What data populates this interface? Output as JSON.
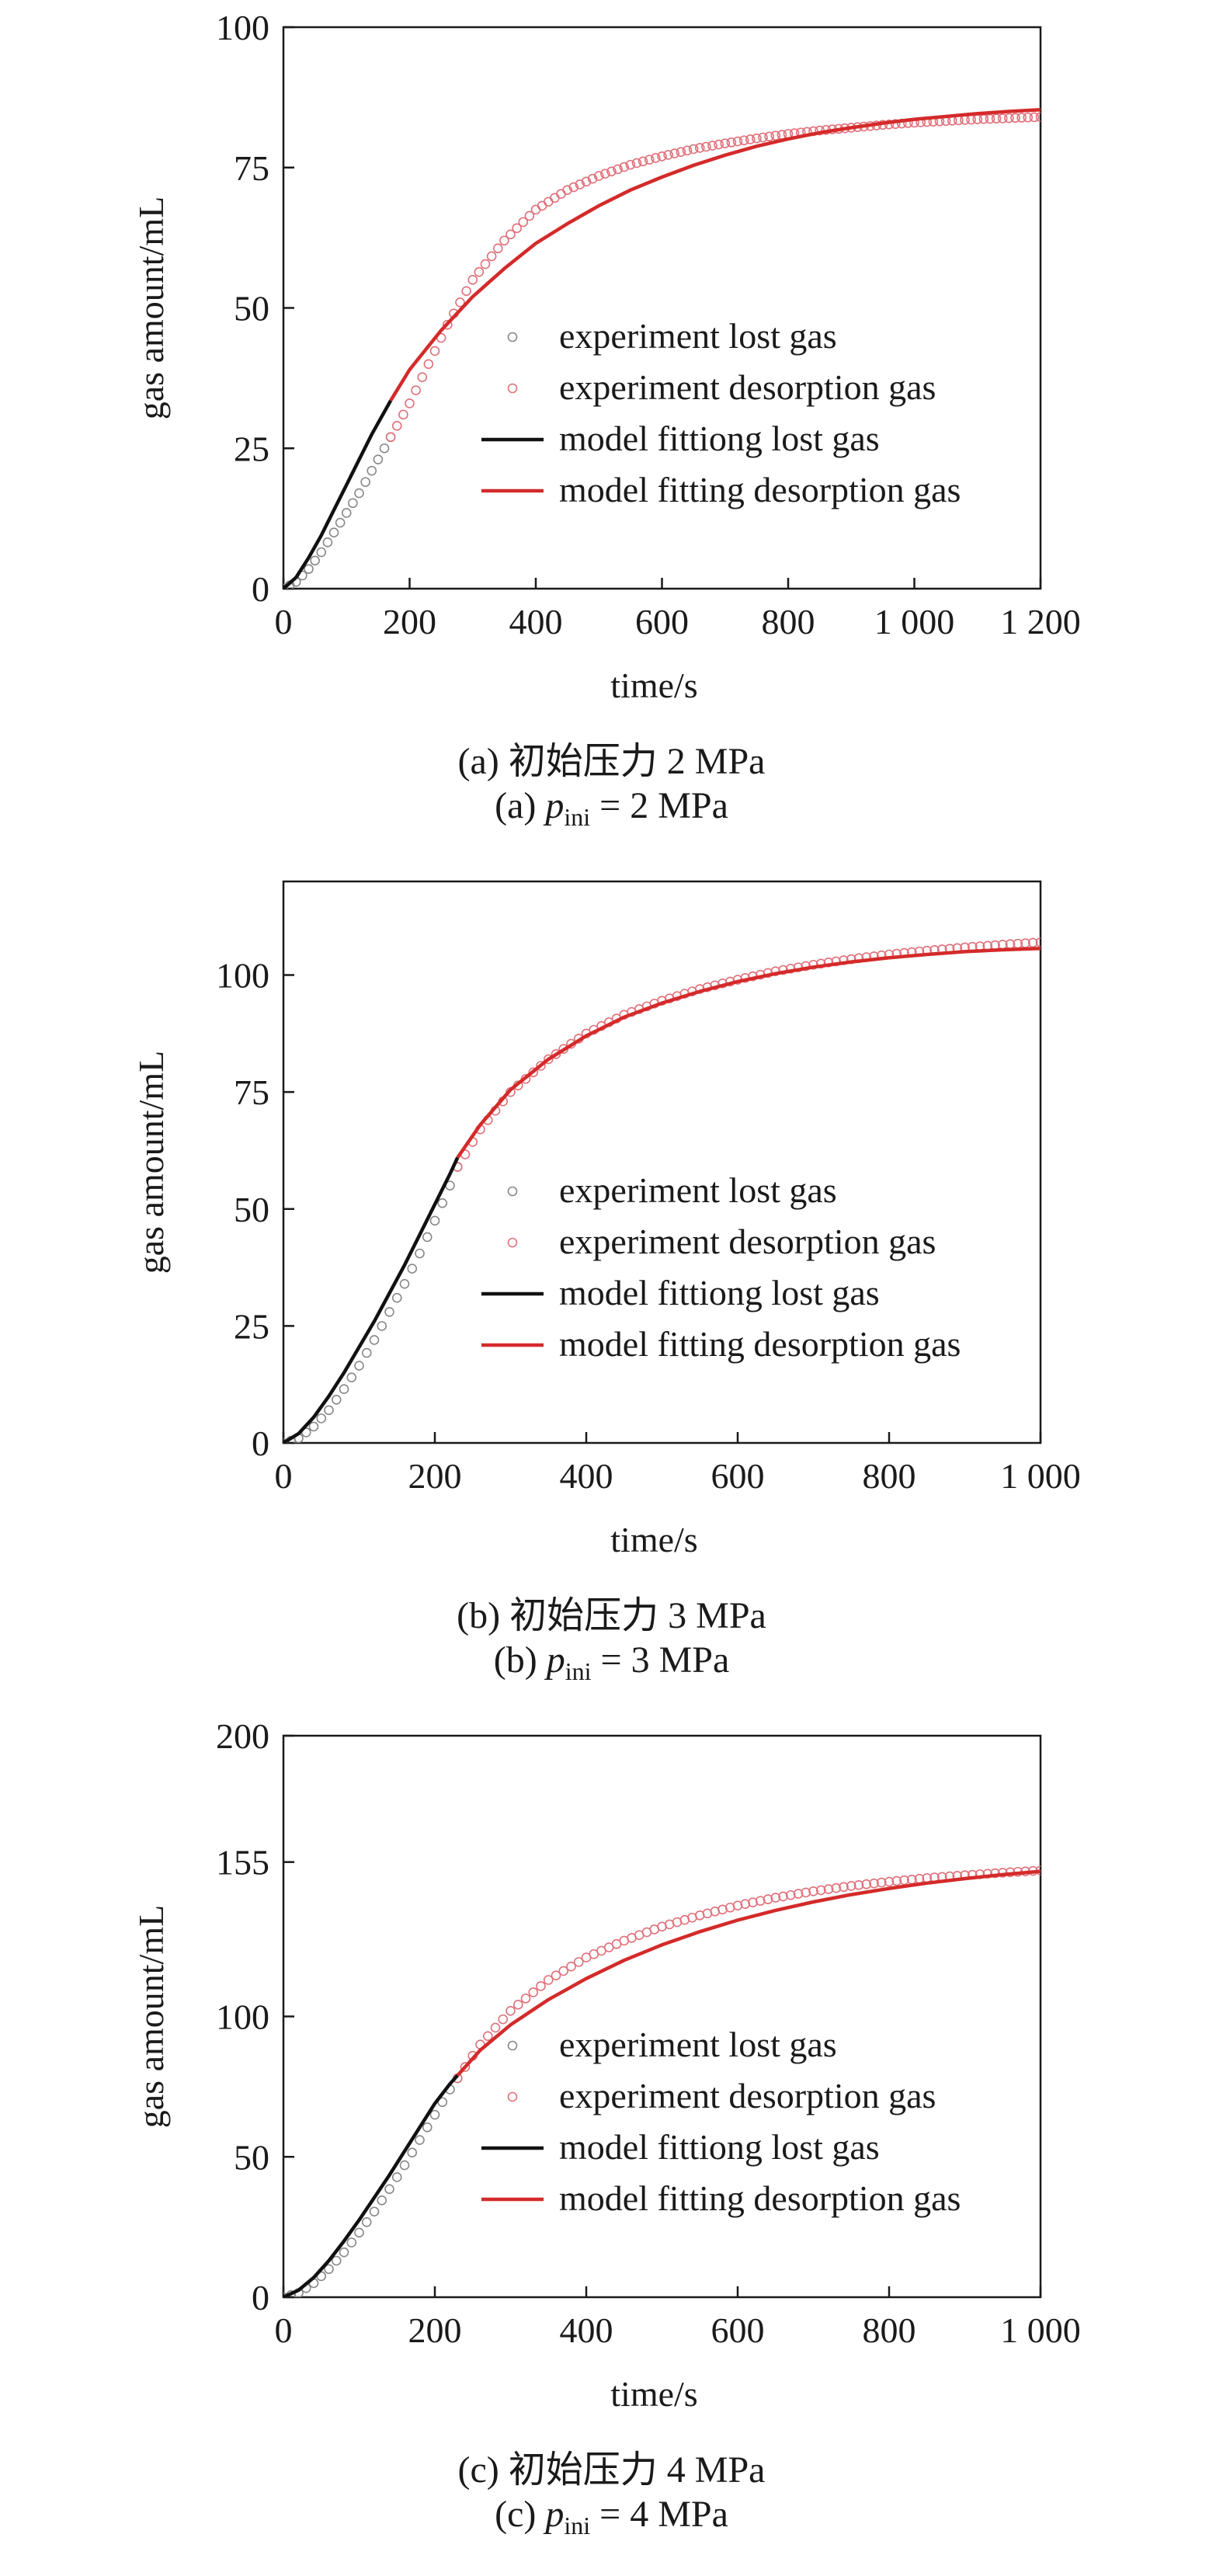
{
  "chart_data": [
    {
      "type": "scatter",
      "xlabel": "time/s",
      "ylabel": "gas amount/mL",
      "xlim": [
        0,
        1200
      ],
      "ylim": [
        0,
        100
      ],
      "xticks": [
        0,
        200,
        400,
        600,
        800,
        1000,
        1200
      ],
      "xtick_labels": [
        "0",
        "200",
        "400",
        "600",
        "800",
        "1 000",
        "1 200"
      ],
      "yticks": [
        0,
        25,
        50,
        75,
        100
      ],
      "ytick_labels": [
        "0",
        "25",
        "50",
        "75",
        "100"
      ],
      "legend_position": "center-right",
      "legend": [
        "experiment lost gas",
        "experiment desorption gas",
        "model fittiong lost gas",
        "model fitting desorption gas"
      ],
      "caption_cn": "(a) 初始压力 2 MPa",
      "caption_en_prefix": "(a) ",
      "caption_en_var": "p",
      "caption_en_sub": "ini",
      "caption_en_suffix": " = 2 MPa",
      "series": [
        {
          "name": "experiment lost gas",
          "kind": "points",
          "color": "#888888",
          "x": [
            0,
            20,
            40,
            60,
            80,
            100,
            120,
            140,
            160,
            170
          ],
          "y": [
            0,
            1.2,
            3.5,
            6.5,
            10.0,
            13.5,
            17.0,
            21.0,
            25.0,
            27.0
          ]
        },
        {
          "name": "experiment desorption gas",
          "kind": "points",
          "color": "#e0707a",
          "x": [
            170,
            200,
            230,
            260,
            300,
            350,
            400,
            450,
            500,
            550,
            600,
            650,
            700,
            750,
            800,
            850,
            900,
            950,
            1000,
            1050,
            1100,
            1150,
            1200
          ],
          "y": [
            27.0,
            33.0,
            40.0,
            47.0,
            55.0,
            62.0,
            67.5,
            71.0,
            73.5,
            75.5,
            77.0,
            78.3,
            79.3,
            80.2,
            81.0,
            81.6,
            82.1,
            82.6,
            83.0,
            83.3,
            83.6,
            83.8,
            84.0
          ]
        },
        {
          "name": "model fittiong lost gas",
          "kind": "line",
          "color": "#111111",
          "x": [
            0,
            20,
            40,
            60,
            80,
            100,
            120,
            140,
            160,
            170
          ],
          "y": [
            0,
            2.0,
            5.5,
            9.5,
            14.0,
            18.5,
            23.0,
            27.5,
            31.5,
            33.5
          ]
        },
        {
          "name": "model fitting desorption gas",
          "kind": "line",
          "color": "#d42a2a",
          "x": [
            170,
            200,
            250,
            300,
            350,
            400,
            450,
            500,
            550,
            600,
            650,
            700,
            750,
            800,
            850,
            900,
            950,
            1000,
            1050,
            1100,
            1150,
            1200
          ],
          "y": [
            33.5,
            39.0,
            46.0,
            52.0,
            57.0,
            61.5,
            65.0,
            68.2,
            71.0,
            73.3,
            75.4,
            77.2,
            78.8,
            80.1,
            81.2,
            82.1,
            82.9,
            83.6,
            84.1,
            84.6,
            85.0,
            85.3
          ]
        }
      ]
    },
    {
      "type": "scatter",
      "xlabel": "time/s",
      "ylabel": "gas amount/mL",
      "xlim": [
        0,
        1000
      ],
      "ylim": [
        0,
        120
      ],
      "xticks": [
        0,
        200,
        400,
        600,
        800,
        1000
      ],
      "xtick_labels": [
        "0",
        "200",
        "400",
        "600",
        "800",
        "1 000"
      ],
      "yticks": [
        0,
        25,
        50,
        75,
        100
      ],
      "ytick_labels": [
        "0",
        "25",
        "50",
        "75",
        "100"
      ],
      "legend_position": "center-right",
      "legend": [
        "experiment lost gas",
        "experiment desorption gas",
        "model fittiong lost gas",
        "model fitting desorption gas"
      ],
      "caption_cn": "(b) 初始压力 3 MPa",
      "caption_en_prefix": "(b) ",
      "caption_en_var": "p",
      "caption_en_sub": "ini",
      "caption_en_suffix": " = 3 MPa",
      "series": [
        {
          "name": "experiment lost gas",
          "kind": "points",
          "color": "#888888",
          "x": [
            0,
            20,
            40,
            60,
            80,
            100,
            120,
            140,
            160,
            180,
            200,
            220,
            230
          ],
          "y": [
            0,
            1.0,
            3.5,
            7.0,
            11.5,
            16.5,
            22.0,
            28.0,
            34.0,
            40.5,
            47.5,
            55.0,
            59.0
          ]
        },
        {
          "name": "experiment desorption gas",
          "kind": "points",
          "color": "#e0707a",
          "x": [
            230,
            260,
            300,
            350,
            400,
            450,
            500,
            550,
            600,
            650,
            700,
            750,
            800,
            850,
            900,
            950,
            1000
          ],
          "y": [
            59.0,
            67.0,
            75.0,
            82.0,
            87.5,
            91.5,
            94.5,
            97.0,
            99.0,
            100.8,
            102.2,
            103.4,
            104.4,
            105.2,
            105.9,
            106.5,
            107.0
          ]
        },
        {
          "name": "model fittiong lost gas",
          "kind": "line",
          "color": "#111111",
          "x": [
            0,
            20,
            40,
            60,
            80,
            100,
            120,
            140,
            160,
            180,
            200,
            220,
            230
          ],
          "y": [
            0,
            2.0,
            5.5,
            10.0,
            15.0,
            20.5,
            26.0,
            32.0,
            38.0,
            44.5,
            51.0,
            57.5,
            61.0
          ]
        },
        {
          "name": "model fitting desorption gas",
          "kind": "line",
          "color": "#d42a2a",
          "x": [
            230,
            260,
            300,
            350,
            400,
            450,
            500,
            550,
            600,
            650,
            700,
            750,
            800,
            850,
            900,
            950,
            1000
          ],
          "y": [
            61.0,
            68.0,
            75.5,
            82.0,
            87.0,
            91.0,
            94.0,
            96.5,
            98.6,
            100.3,
            101.7,
            102.8,
            103.7,
            104.4,
            105.0,
            105.4,
            105.7
          ]
        }
      ]
    },
    {
      "type": "scatter",
      "xlabel": "time/s",
      "ylabel": "gas amount/mL",
      "xlim": [
        0,
        1000
      ],
      "ylim": [
        0,
        200
      ],
      "xticks": [
        0,
        200,
        400,
        600,
        800,
        1000
      ],
      "xtick_labels": [
        "0",
        "200",
        "400",
        "600",
        "800",
        "1 000"
      ],
      "yticks": [
        0,
        50,
        100,
        155,
        200
      ],
      "ytick_labels": [
        "0",
        "50",
        "100",
        "155",
        "200"
      ],
      "legend_position": "center-right",
      "legend": [
        "experiment lost gas",
        "experiment desorption gas",
        "model fittiong lost gas",
        "model fitting desorption gas"
      ],
      "caption_cn": "(c) 初始压力 4 MPa",
      "caption_en_prefix": "(c) ",
      "caption_en_var": "p",
      "caption_en_sub": "ini",
      "caption_en_suffix": " = 4 MPa",
      "series": [
        {
          "name": "experiment lost gas",
          "kind": "points",
          "color": "#888888",
          "x": [
            0,
            20,
            40,
            60,
            80,
            100,
            120,
            140,
            160,
            180,
            200,
            220,
            230
          ],
          "y": [
            0,
            1.5,
            5.0,
            10.0,
            16.0,
            23.0,
            30.5,
            38.5,
            47.0,
            56.0,
            65.0,
            74.0,
            78.0
          ]
        },
        {
          "name": "experiment desorption gas",
          "kind": "points",
          "color": "#e0707a",
          "x": [
            230,
            260,
            300,
            350,
            400,
            450,
            500,
            550,
            600,
            650,
            700,
            750,
            800,
            850,
            900,
            950,
            1000
          ],
          "y": [
            78.0,
            90.0,
            102.0,
            113.0,
            121.0,
            127.0,
            132.0,
            136.0,
            139.5,
            142.3,
            144.6,
            146.5,
            148.0,
            149.3,
            150.3,
            151.2,
            152.0
          ]
        },
        {
          "name": "model fittiong lost gas",
          "kind": "line",
          "color": "#111111",
          "x": [
            0,
            20,
            40,
            60,
            80,
            100,
            120,
            140,
            160,
            180,
            200,
            220,
            230
          ],
          "y": [
            0,
            2.5,
            7.0,
            13.0,
            20.0,
            27.5,
            35.5,
            43.5,
            52.0,
            60.5,
            69.0,
            76.0,
            79.0
          ]
        },
        {
          "name": "model fitting desorption gas",
          "kind": "line",
          "color": "#d42a2a",
          "x": [
            230,
            260,
            300,
            350,
            400,
            450,
            500,
            550,
            600,
            650,
            700,
            750,
            800,
            850,
            900,
            950,
            1000
          ],
          "y": [
            79.0,
            88.0,
            97.0,
            106.0,
            113.5,
            120.0,
            125.5,
            130.2,
            134.3,
            137.8,
            140.8,
            143.4,
            145.6,
            147.5,
            149.1,
            150.5,
            151.7
          ]
        }
      ]
    }
  ]
}
